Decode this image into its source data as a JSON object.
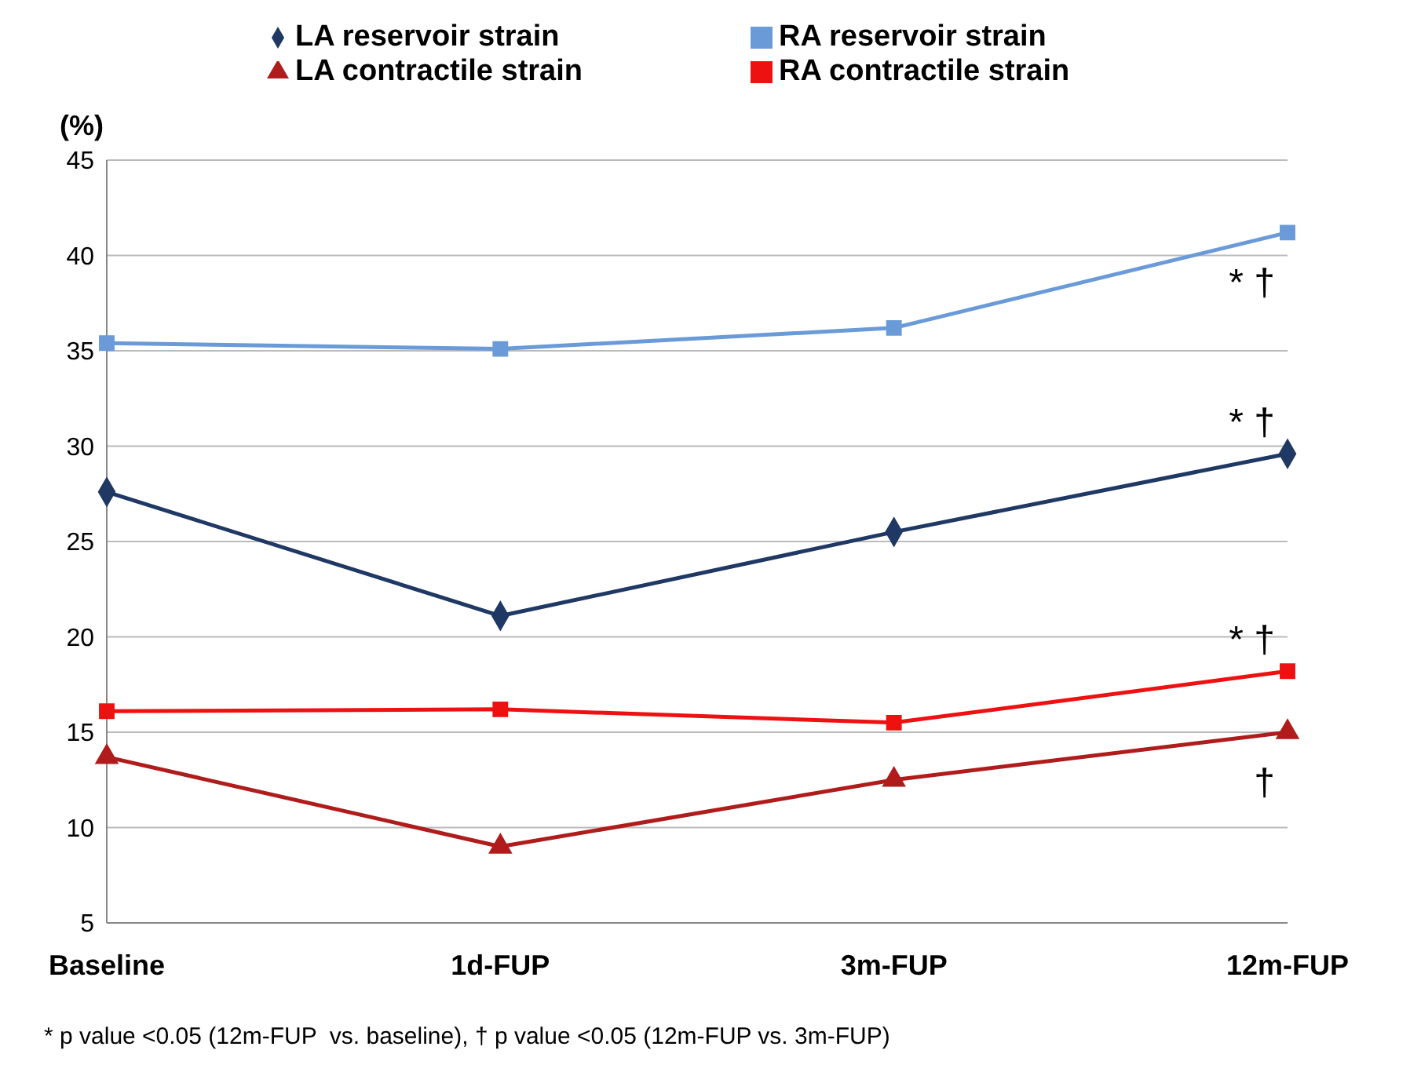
{
  "chart_data": {
    "type": "line",
    "ylabel": "(%)",
    "categories": [
      "Baseline",
      "1d-FUP",
      "3m-FUP",
      "12m-FUP"
    ],
    "series": [
      {
        "name": "LA reservoir strain",
        "color": "#1f3864",
        "marker": "diamond",
        "values": [
          27.6,
          21.1,
          25.5,
          29.6
        ]
      },
      {
        "name": "RA reservoir strain",
        "color": "#6a9bd8",
        "marker": "square",
        "values": [
          35.4,
          35.1,
          36.2,
          41.2
        ]
      },
      {
        "name": "LA contractile strain",
        "color": "#b01c1c",
        "marker": "triangle",
        "values": [
          13.7,
          9.0,
          12.5,
          15.0
        ]
      },
      {
        "name": "RA contractile strain",
        "color": "#ee1111",
        "marker": "square",
        "values": [
          16.1,
          16.2,
          15.5,
          18.2
        ]
      }
    ],
    "ylim": [
      5,
      45
    ],
    "yticks": [
      5,
      10,
      15,
      20,
      25,
      30,
      35,
      40,
      45
    ],
    "grid": "y",
    "legend": "top",
    "line_style": "solid",
    "annotations": [
      {
        "text": "* †",
        "x": "12m-FUP",
        "y": 41.2
      },
      {
        "text": "* †",
        "x": "12m-FUP",
        "y": 29.6
      },
      {
        "text": "* †",
        "x": "12m-FUP",
        "y": 18.2
      },
      {
        "text": "†",
        "x": "12m-FUP",
        "y": 15.0
      },
      "* p value <0.05 (12m-FUP  vs. baseline), † p value <0.05 (12m-FUP vs. 3m-FUP)"
    ]
  }
}
